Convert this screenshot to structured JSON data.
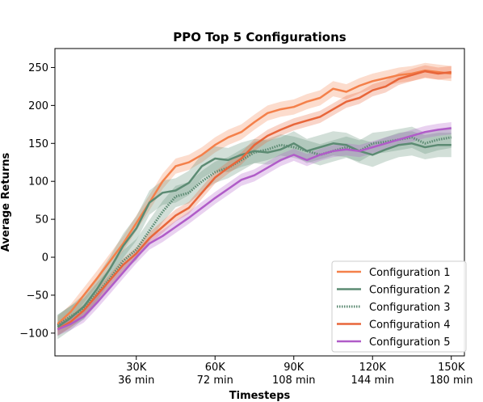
{
  "chart_data": {
    "type": "line",
    "title": "PPO Top 5 Configurations",
    "xlabel": "Timesteps",
    "ylabel": "Average Returns",
    "xlim": [
      -1000,
      155000
    ],
    "ylim": [
      -130,
      275
    ],
    "xticks": [
      {
        "value": 30000,
        "label": "30K",
        "sublabel": "36 min"
      },
      {
        "value": 60000,
        "label": "60K",
        "sublabel": "72 min"
      },
      {
        "value": 90000,
        "label": "90K",
        "sublabel": "108 min"
      },
      {
        "value": 120000,
        "label": "120K",
        "sublabel": "144 min"
      },
      {
        "value": 150000,
        "label": "150K",
        "sublabel": "180 min"
      }
    ],
    "yticks": [
      -100,
      -50,
      0,
      50,
      100,
      150,
      200,
      250
    ],
    "grid": false,
    "legend_position": "bottom-right",
    "x": [
      0,
      5000,
      10000,
      15000,
      20000,
      25000,
      30000,
      35000,
      40000,
      45000,
      50000,
      55000,
      60000,
      65000,
      70000,
      75000,
      80000,
      85000,
      90000,
      95000,
      100000,
      105000,
      110000,
      115000,
      120000,
      125000,
      130000,
      135000,
      140000,
      145000,
      150000
    ],
    "series": [
      {
        "name": "Configuration 1",
        "color": "#f4804a",
        "style": "solid",
        "band": 10,
        "values": [
          -88,
          -72,
          -50,
          -28,
          -5,
          18,
          45,
          72,
          100,
          120,
          125,
          135,
          148,
          158,
          165,
          178,
          190,
          195,
          198,
          205,
          210,
          222,
          218,
          226,
          232,
          236,
          240,
          242,
          246,
          244,
          242
        ]
      },
      {
        "name": "Configuration 2",
        "color": "#5c8b73",
        "style": "solid",
        "band": 16,
        "values": [
          -92,
          -80,
          -65,
          -42,
          -15,
          15,
          38,
          72,
          85,
          88,
          98,
          120,
          130,
          128,
          135,
          140,
          138,
          142,
          150,
          140,
          145,
          150,
          148,
          140,
          135,
          142,
          148,
          150,
          145,
          148,
          148
        ]
      },
      {
        "name": "Configuration 3",
        "color": "#5c8b73",
        "style": "dotted",
        "band": 14,
        "values": [
          -90,
          -78,
          -68,
          -48,
          -28,
          -5,
          10,
          35,
          60,
          80,
          85,
          100,
          112,
          118,
          128,
          138,
          142,
          148,
          145,
          140,
          135,
          140,
          145,
          140,
          150,
          152,
          155,
          158,
          150,
          155,
          158
        ]
      },
      {
        "name": "Configuration 4",
        "color": "#e8663a",
        "style": "solid",
        "band": 8,
        "values": [
          -95,
          -85,
          -70,
          -50,
          -30,
          -10,
          5,
          25,
          40,
          55,
          65,
          85,
          105,
          118,
          130,
          148,
          160,
          168,
          175,
          180,
          185,
          195,
          205,
          210,
          220,
          225,
          235,
          240,
          245,
          242,
          244
        ]
      },
      {
        "name": "Configuration 5",
        "color": "#b05cc8",
        "style": "solid",
        "band": 8,
        "values": [
          -95,
          -88,
          -78,
          -60,
          -40,
          -20,
          0,
          18,
          28,
          40,
          52,
          65,
          78,
          90,
          102,
          108,
          118,
          128,
          135,
          128,
          135,
          140,
          142,
          140,
          145,
          150,
          155,
          160,
          165,
          168,
          170
        ]
      }
    ]
  }
}
